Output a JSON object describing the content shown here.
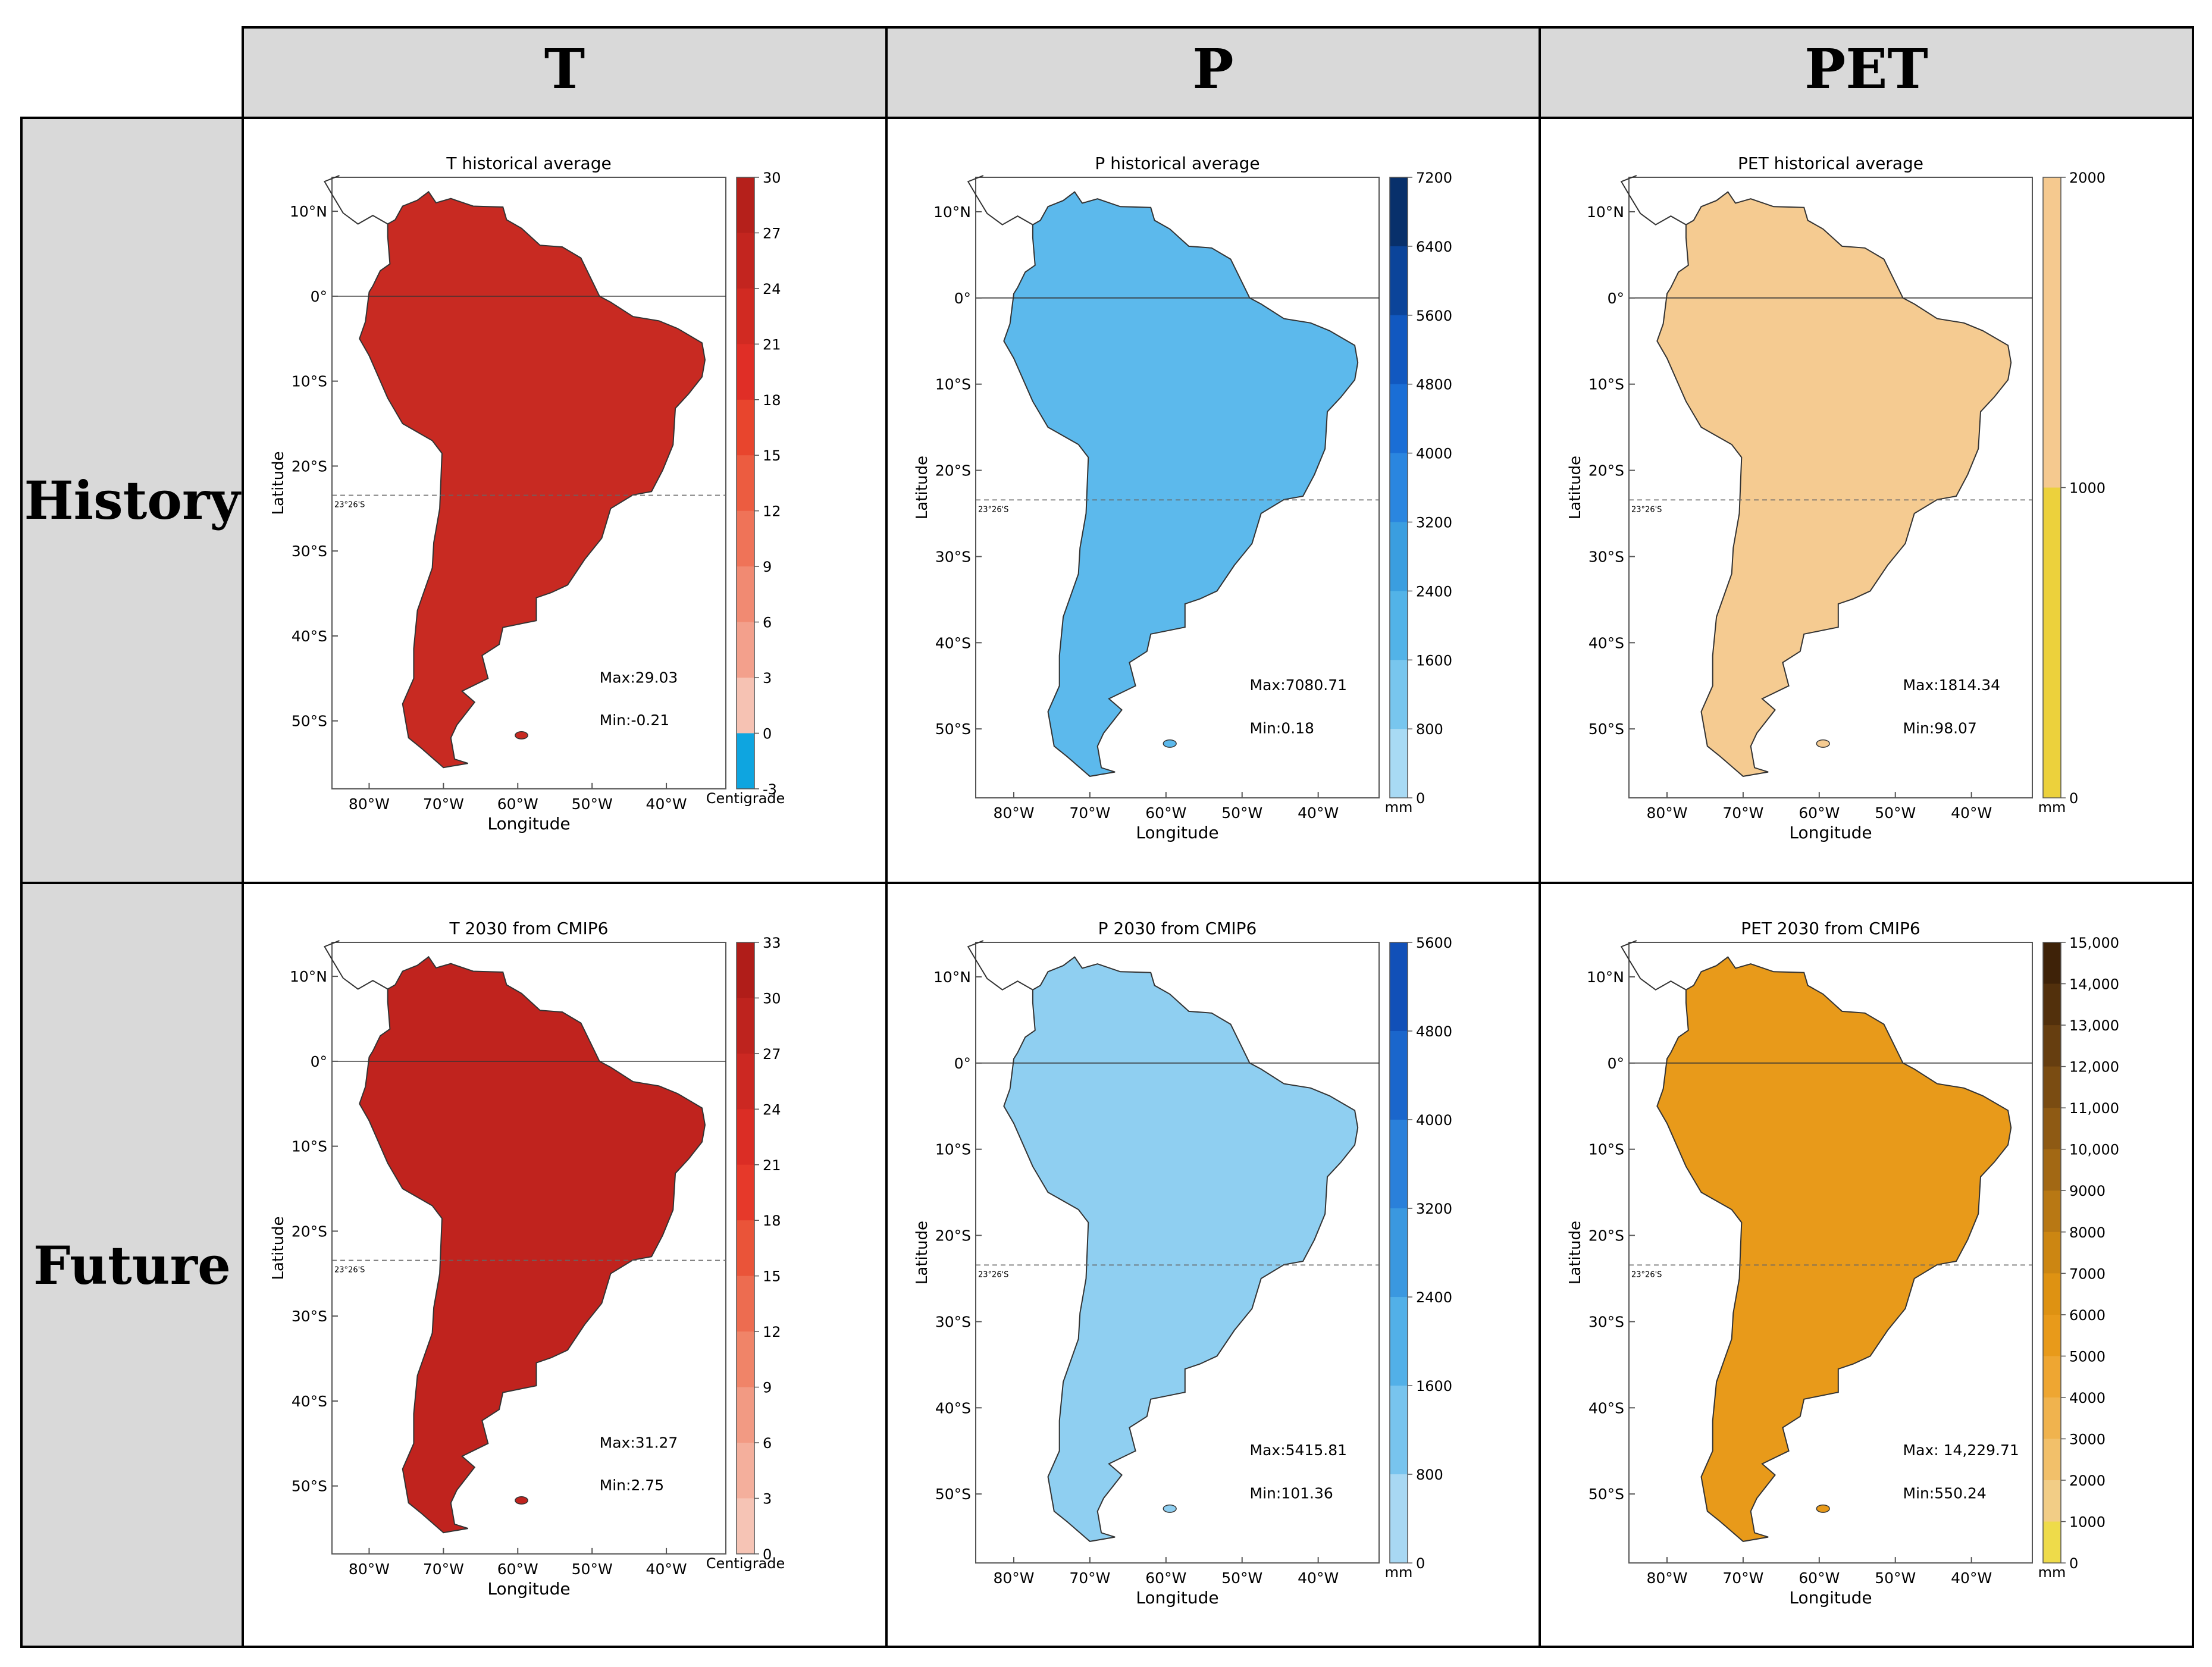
{
  "table": {
    "columns": [
      "T",
      "P",
      "PET"
    ],
    "rows": [
      "History",
      "Future"
    ]
  },
  "common": {
    "xlabel": "Longitude",
    "ylabel": "Latitude",
    "tropic_label": "23°26'S",
    "lon_ticks": [
      "80°W",
      "70°W",
      "60°W",
      "50°W",
      "40°W"
    ],
    "lat_ticks": [
      "10°N",
      "0°",
      "10°S",
      "20°S",
      "30°S",
      "40°S",
      "50°S"
    ]
  },
  "colors": {
    "header_bg": "#d9d9d9",
    "grid_line": "#000000",
    "ocean": "#ffffff"
  },
  "panels": [
    {
      "name": "t-history",
      "title": "T historical average",
      "unit": "Centigrade",
      "max_label": "Max:29.03",
      "min_label": "Min:-0.21",
      "colorbar_ticks": [
        "30",
        "27",
        "24",
        "21",
        "18",
        "15",
        "12",
        "9",
        "6",
        "3",
        "0",
        "-3"
      ],
      "colorbar_colors": [
        "#b5201b",
        "#c3251f",
        "#d12a22",
        "#e02e26",
        "#e8452d",
        "#ec5c40",
        "#ef7358",
        "#f18a72",
        "#f3a08c",
        "#f6c2b3",
        "#0ea5e0"
      ],
      "land_color": "#c82a22"
    },
    {
      "name": "p-history",
      "title": "P historical average",
      "unit": "mm",
      "max_label": "Max:7080.71",
      "min_label": "Min:0.18",
      "colorbar_ticks": [
        "7200",
        "6400",
        "5600",
        "4800",
        "4000",
        "3200",
        "2400",
        "1600",
        "800",
        "0"
      ],
      "colorbar_colors": [
        "#08306b",
        "#0b449a",
        "#1158c0",
        "#1a6ed6",
        "#2a86e0",
        "#3a9ee0",
        "#52b3e8",
        "#78c6ee",
        "#a8daf4"
      ],
      "land_color": "#5cb9ec"
    },
    {
      "name": "pet-history",
      "title": "PET historical average",
      "unit": "mm",
      "max_label": "Max:1814.34",
      "min_label": "Min:98.07",
      "colorbar_ticks": [
        "2000",
        "1000",
        "0"
      ],
      "colorbar_colors": [
        "#f5c98f",
        "#ecd13c"
      ],
      "land_color": "#f5cb91"
    },
    {
      "name": "t-future",
      "title": "T 2030 from CMIP6",
      "unit": "Centigrade",
      "max_label": "Max:31.27",
      "min_label": "Min:2.75",
      "colorbar_ticks": [
        "33",
        "30",
        "27",
        "24",
        "21",
        "18",
        "15",
        "12",
        "9",
        "6",
        "3",
        "0"
      ],
      "colorbar_colors": [
        "#b01d19",
        "#be231e",
        "#cc2822",
        "#db2d25",
        "#e6392a",
        "#ea5439",
        "#ed6c50",
        "#f08468",
        "#f29a83",
        "#f4af9c",
        "#f6c4b5"
      ],
      "land_color": "#c0231e"
    },
    {
      "name": "p-future",
      "title": "P 2030 from CMIP6",
      "unit": "mm",
      "max_label": "Max:5415.81",
      "min_label": "Min:101.36",
      "colorbar_ticks": [
        "5600",
        "4800",
        "4000",
        "3200",
        "2400",
        "1600",
        "800",
        "0"
      ],
      "colorbar_colors": [
        "#1150b8",
        "#1a66cc",
        "#2a80da",
        "#3a98e0",
        "#52b0e8",
        "#78c4ee",
        "#a8d8f3"
      ],
      "land_color": "#8fcff1"
    },
    {
      "name": "pet-future",
      "title": "PET 2030 from CMIP6",
      "unit": "mm",
      "max_label": "Max: 14,229.71",
      "min_label": "Min:550.24",
      "colorbar_ticks": [
        "15,000",
        "14,000",
        "13,000",
        "12,000",
        "11,000",
        "10,000",
        "9000",
        "8000",
        "7000",
        "6000",
        "5000",
        "4000",
        "3000",
        "2000",
        "1000",
        "0"
      ],
      "colorbar_colors": [
        "#3e2208",
        "#52300c",
        "#663e10",
        "#7a4c12",
        "#8e5a14",
        "#a26814",
        "#b87814",
        "#cc8612",
        "#de9212",
        "#e89a1a",
        "#eea632",
        "#f0b34e",
        "#f2c06a",
        "#f2cd86",
        "#eedb4a"
      ],
      "land_color": "#e89a1a"
    }
  ]
}
